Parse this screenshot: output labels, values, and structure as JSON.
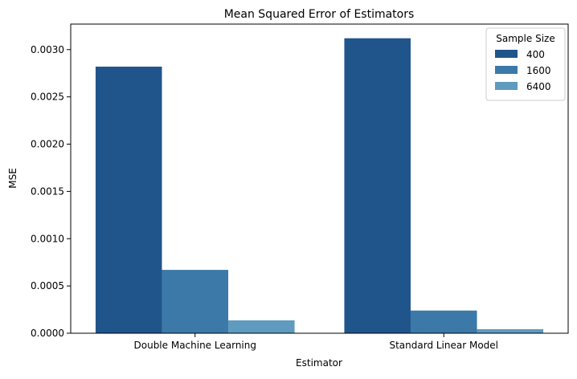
{
  "chart_data": {
    "type": "bar",
    "title": "Mean Squared Error of Estimators",
    "xlabel": "Estimator",
    "ylabel": "MSE",
    "categories": [
      "Double Machine Learning",
      "Standard Linear Model"
    ],
    "series": [
      {
        "name": "400",
        "values": [
          0.00282,
          0.00312
        ],
        "color": "#20558c"
      },
      {
        "name": "1600",
        "values": [
          0.00067,
          0.00024
        ],
        "color": "#3c79a8"
      },
      {
        "name": "6400",
        "values": [
          0.000136,
          4.3e-05
        ],
        "color": "#5f9abf"
      }
    ],
    "ylim": [
      0,
      0.00327
    ],
    "yticks": [
      "0.0000",
      "0.0005",
      "0.0010",
      "0.0015",
      "0.0020",
      "0.0025",
      "0.0030"
    ],
    "grid": false,
    "legend": {
      "title": "Sample Size",
      "placement": "top-right"
    }
  }
}
